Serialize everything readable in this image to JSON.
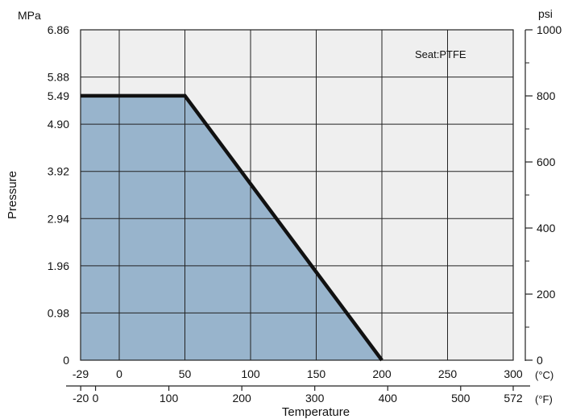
{
  "chart_data": {
    "type": "area",
    "left_axis": {
      "unit": "MPa",
      "title": "Pressure",
      "ylim": [
        0,
        6.86
      ],
      "ticks": [
        0,
        0.98,
        1.96,
        2.94,
        3.92,
        4.9,
        5.49,
        5.88,
        6.86
      ],
      "tick_labels": [
        "0",
        "0.98",
        "1.96",
        "2.94",
        "3.92",
        "4.90",
        "5.49",
        "5.88",
        "6.86"
      ],
      "grid_ticks": [
        0,
        0.98,
        1.96,
        2.94,
        3.92,
        4.9,
        5.88,
        6.86
      ]
    },
    "right_axis": {
      "unit": "psi",
      "ylim": [
        0,
        1000
      ],
      "major_ticks": [
        0,
        200,
        400,
        600,
        800,
        1000
      ],
      "minor_ticks": [
        100,
        300,
        500,
        700,
        900
      ]
    },
    "x_axis_celsius": {
      "unit": "(°C)",
      "xlim": [
        -29,
        300
      ],
      "ticks": [
        -29,
        0,
        50,
        100,
        150,
        200,
        250,
        300
      ],
      "tick_labels": [
        "-29",
        "0",
        "50",
        "100",
        "150",
        "200",
        "250",
        "300"
      ]
    },
    "x_axis_fahrenheit": {
      "unit": "(°F)",
      "ticks": [
        -20,
        0,
        100,
        200,
        300,
        400,
        500,
        572
      ],
      "tick_labels": [
        "-20",
        "0",
        "100",
        "200",
        "300",
        "400",
        "500",
        "572"
      ]
    },
    "xlabel": "Temperature",
    "annotation": "Seat:PTFE",
    "series": [
      {
        "name": "",
        "x": [
          -29,
          50,
          200
        ],
        "y": [
          5.49,
          5.49,
          0
        ],
        "line_color": "#111111",
        "fill_color": "#98b4cc"
      }
    ],
    "grid": true,
    "plot_background": "#efefef"
  }
}
